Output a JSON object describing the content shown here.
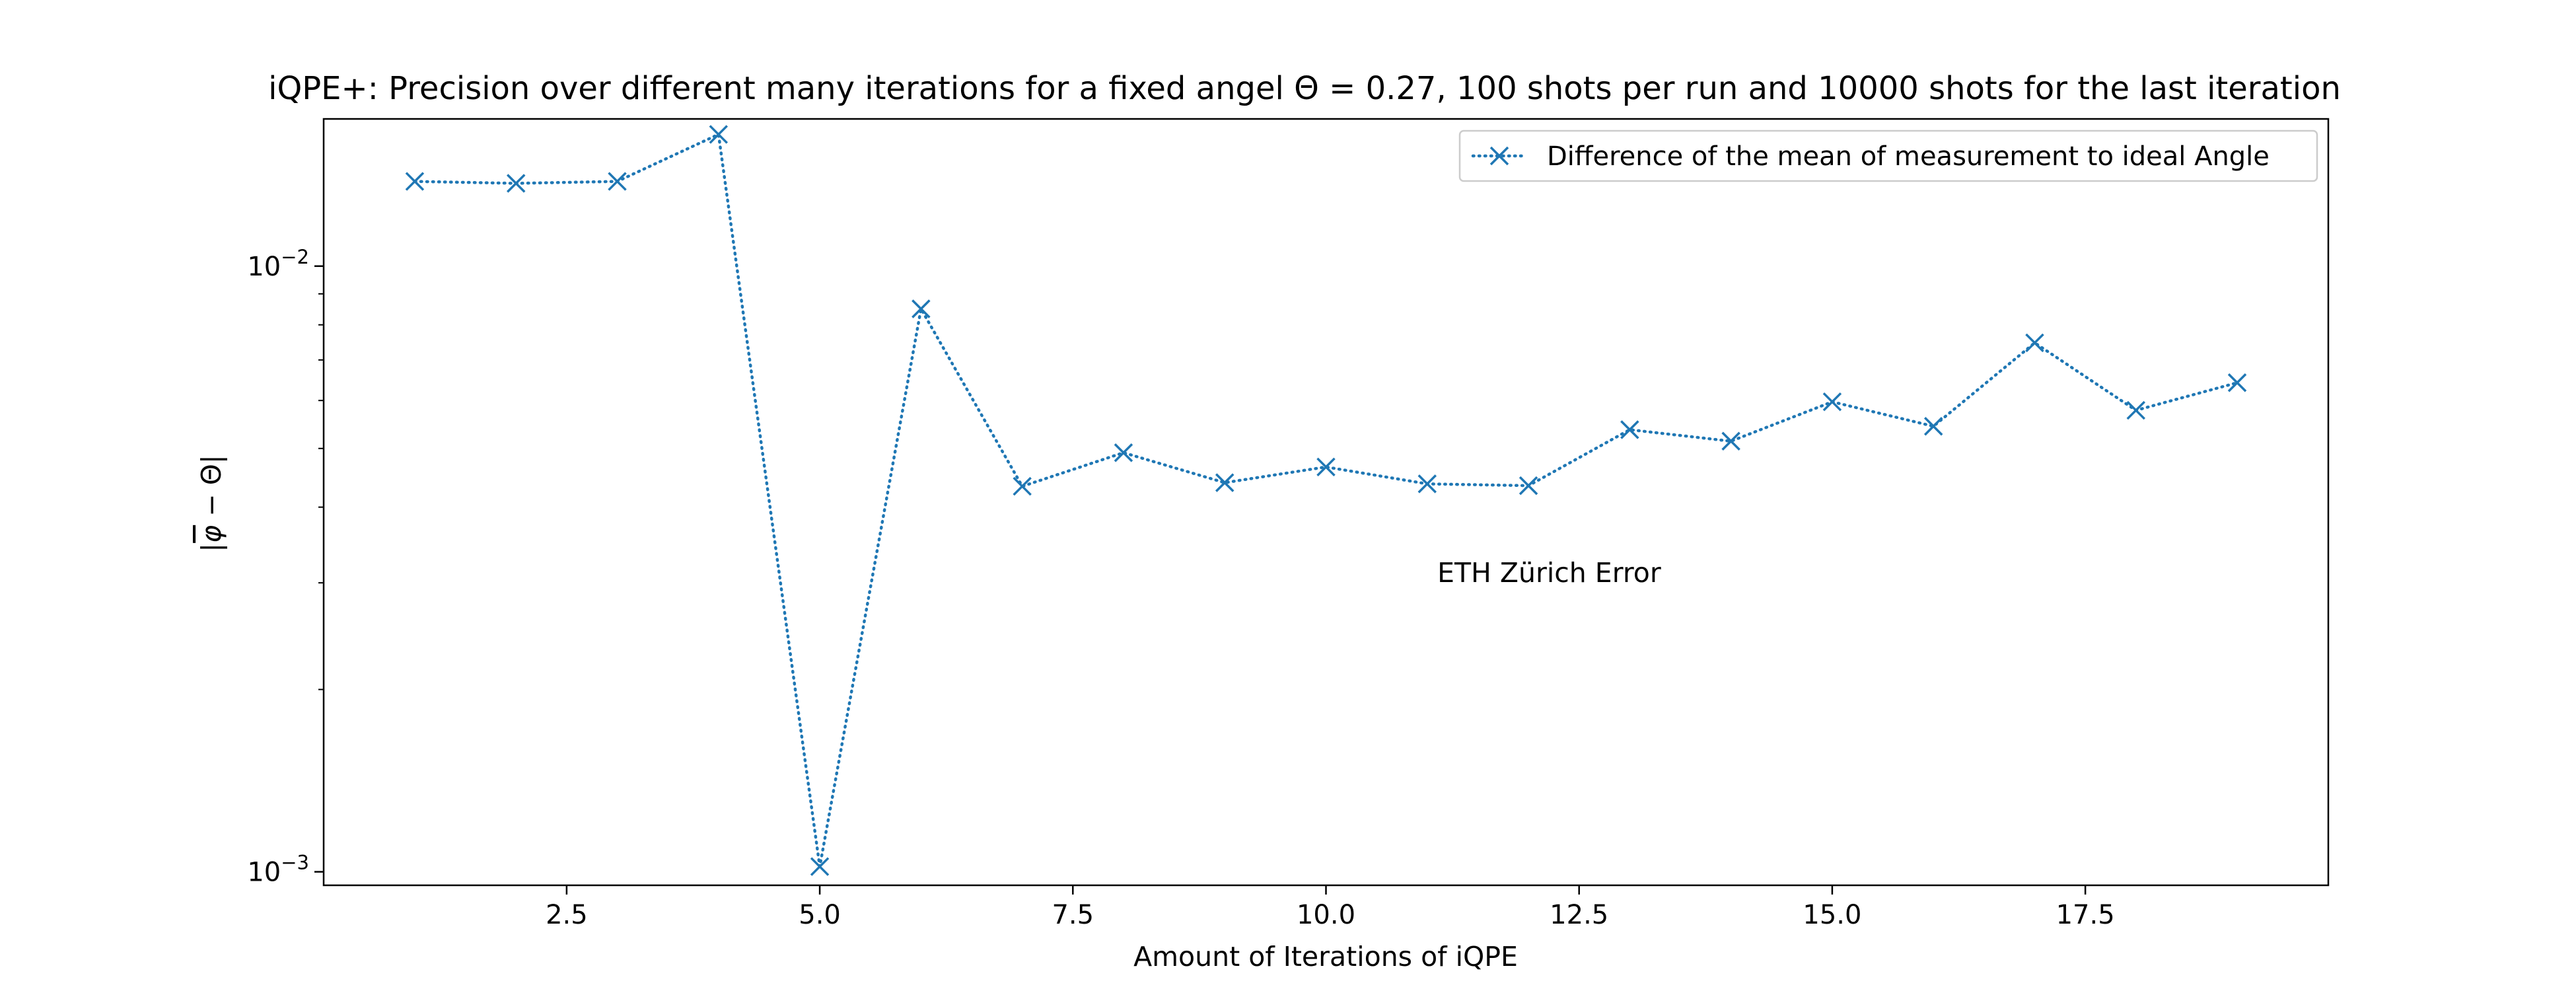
{
  "chart_data": {
    "type": "line",
    "title": "iQPE+: Precision over different many iterations for a fixed angel Θ = 0.27, 100 shots per run and 10000 shots for the last iteration",
    "xlabel": "Amount of Iterations of iQPE",
    "ylabel_base": "|",
    "ylabel_phi": "φ",
    "ylabel_rest": " − Θ|",
    "x_ticks": [
      {
        "value": 2.5,
        "label": "2.5"
      },
      {
        "value": 5.0,
        "label": "5.0"
      },
      {
        "value": 7.5,
        "label": "7.5"
      },
      {
        "value": 10.0,
        "label": "10.0"
      },
      {
        "value": 12.5,
        "label": "12.5"
      },
      {
        "value": 15.0,
        "label": "15.0"
      },
      {
        "value": 17.5,
        "label": "17.5"
      }
    ],
    "y_scale": "log",
    "y_ticks": [
      {
        "value": 0.01,
        "base": "10",
        "exp": "−2"
      },
      {
        "value": 0.001,
        "base": "10",
        "exp": "−3"
      }
    ],
    "xlim": [
      0.1,
      19.9
    ],
    "ylim": [
      0.00095,
      0.0175
    ],
    "grid": false,
    "legend_position": "upper right",
    "series": [
      {
        "name": "Difference of the mean of measurement to ideal Angle",
        "color": "#1f77b4",
        "line_style": "dotted",
        "marker": "x",
        "x": [
          1,
          2,
          3,
          4,
          5,
          6,
          7,
          8,
          9,
          10,
          11,
          12,
          13,
          14,
          15,
          16,
          17,
          18,
          19
        ],
        "y": [
          0.0138,
          0.0137,
          0.0138,
          0.0165,
          0.00102,
          0.0085,
          0.00433,
          0.00492,
          0.00439,
          0.00466,
          0.00437,
          0.00434,
          0.00537,
          0.00514,
          0.00597,
          0.00544,
          0.00747,
          0.00578,
          0.00642
        ]
      }
    ],
    "annotations": [
      {
        "text": "ETH Zürich Error",
        "x": 11.1,
        "y": 0.00301
      }
    ]
  }
}
